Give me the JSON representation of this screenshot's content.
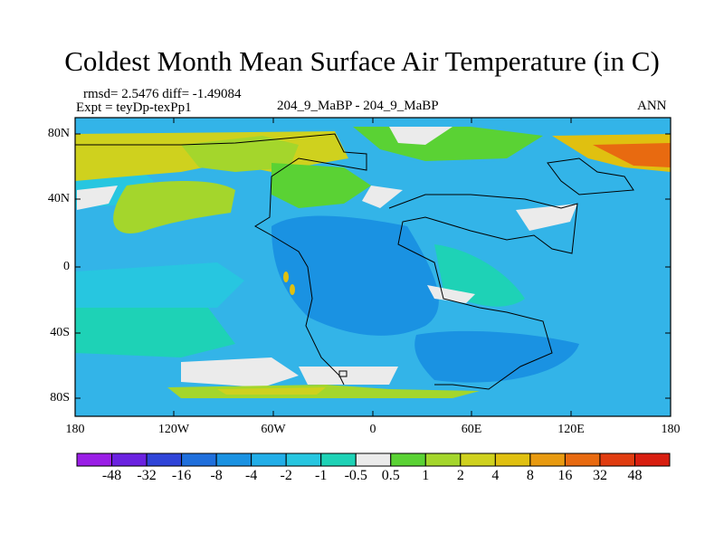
{
  "title": "Coldest Month Mean Surface Air Temperature (in C)",
  "stats": {
    "rmsd_line": "rmsd= 2.5476 diff= -1.49084",
    "expt_line": "Expt = teyDp-texPp1"
  },
  "center_label": "204_9_MaBP - 204_9_MaBP",
  "season_label": "ANN",
  "map": {
    "lat_ticks": [
      "80N",
      "40N",
      "0",
      "40S",
      "80S"
    ],
    "lon_ticks": [
      "180",
      "120W",
      "60W",
      "0",
      "60E",
      "120E",
      "180"
    ],
    "ocean_color": "#33b4e8"
  },
  "colorbar": {
    "labels": [
      "-48",
      "-32",
      "-16",
      "-8",
      "-4",
      "-2",
      "-1",
      "-0.5",
      "0.5",
      "1",
      "2",
      "4",
      "8",
      "16",
      "32",
      "48"
    ],
    "colors": [
      "#9a1ee6",
      "#6b22e0",
      "#2f44d8",
      "#1f6fdc",
      "#1a92e2",
      "#22aee8",
      "#27c6e0",
      "#1ed2b6",
      "#ebebeb",
      "#5ad234",
      "#a4d62c",
      "#cfd11e",
      "#e0c010",
      "#e89a10",
      "#e86a10",
      "#e03c10",
      "#d81e10"
    ]
  }
}
